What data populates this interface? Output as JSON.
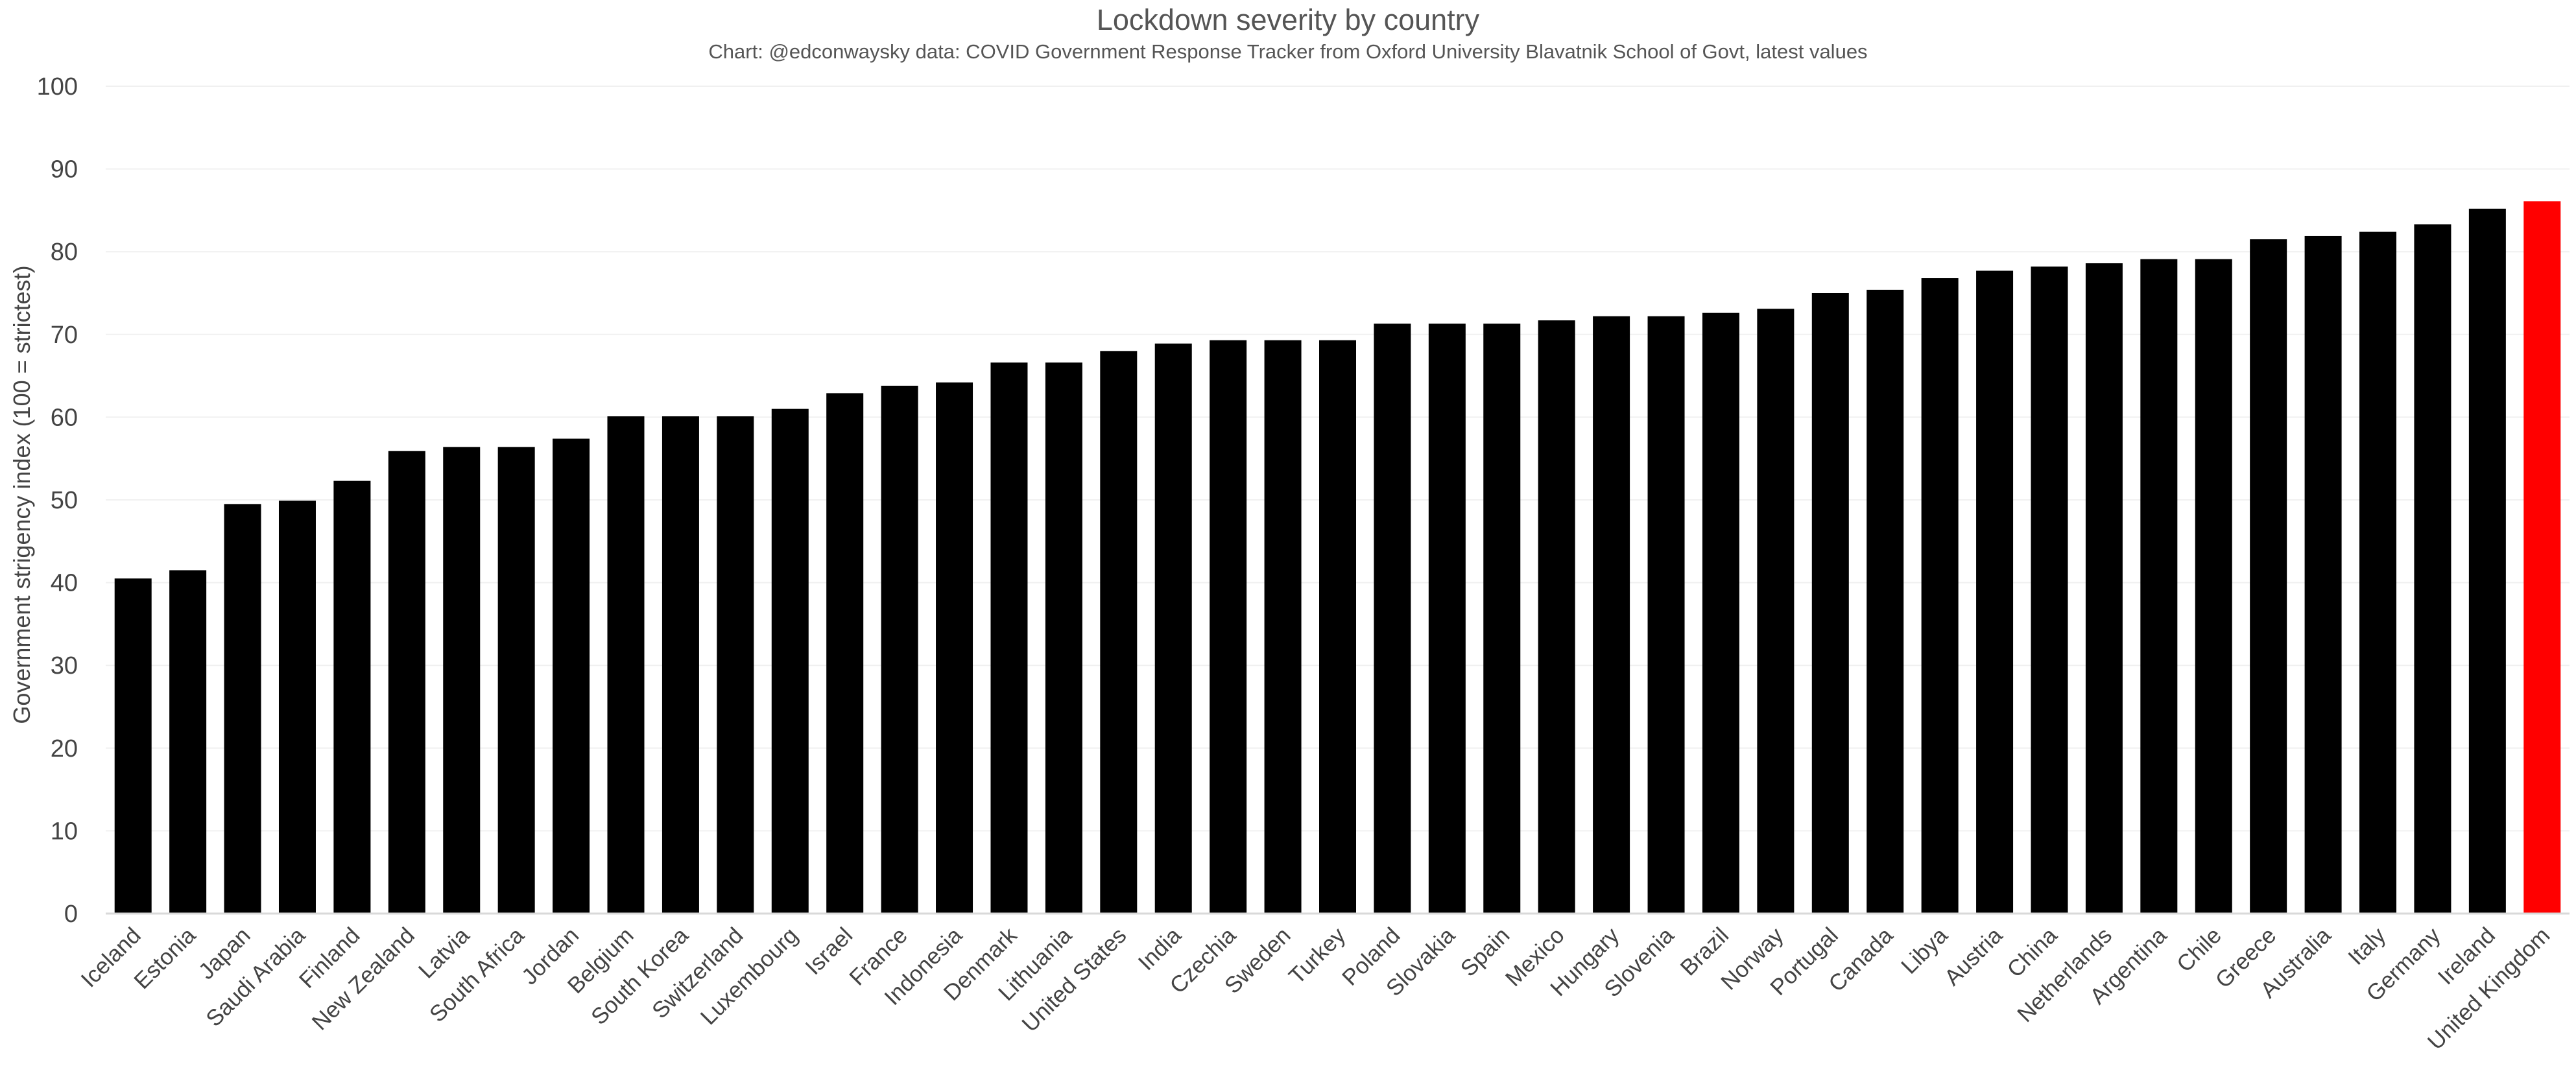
{
  "chart_data": {
    "type": "bar",
    "title": "Lockdown severity by country",
    "subtitle": "Chart: @edconwaysky data: COVID Government Response Tracker from Oxford University Blavatnik School of Govt, latest values",
    "xlabel": "",
    "ylabel": "Government strigency index (100 = strictest)",
    "ylim": [
      0,
      100
    ],
    "y_ticks": [
      "0",
      "10",
      "20",
      "30",
      "40",
      "50",
      "60",
      "70",
      "80",
      "90",
      "100"
    ],
    "grid": true,
    "legend": "none",
    "bar_color": "#000000",
    "highlight_color": "#ff0000",
    "highlight_category": "United Kingdom",
    "categories": [
      "Iceland",
      "Estonia",
      "Japan",
      "Saudi Arabia",
      "Finland",
      "New Zealand",
      "Latvia",
      "South Africa",
      "Jordan",
      "Belgium",
      "South Korea",
      "Switzerland",
      "Luxembourg",
      "Israel",
      "France",
      "Indonesia",
      "Denmark",
      "Lithuania",
      "United States",
      "India",
      "Czechia",
      "Sweden",
      "Turkey",
      "Poland",
      "Slovakia",
      "Spain",
      "Mexico",
      "Hungary",
      "Slovenia",
      "Brazil",
      "Norway",
      "Portugal",
      "Canada",
      "Libya",
      "Austria",
      "China",
      "Netherlands",
      "Argentina",
      "Chile",
      "Greece",
      "Australia",
      "Italy",
      "Germany",
      "Ireland",
      "United Kingdom"
    ],
    "values": [
      40.5,
      41.5,
      49.5,
      49.9,
      52.3,
      55.9,
      56.4,
      56.4,
      57.4,
      60.1,
      60.1,
      60.1,
      61.0,
      62.9,
      63.8,
      64.2,
      66.6,
      66.6,
      68.0,
      68.9,
      69.3,
      69.3,
      69.3,
      71.3,
      71.3,
      71.3,
      71.7,
      72.2,
      72.2,
      72.6,
      73.1,
      75.0,
      75.4,
      76.8,
      77.7,
      78.2,
      78.6,
      79.1,
      79.1,
      81.5,
      81.9,
      82.4,
      83.3,
      85.2,
      86.1
    ]
  }
}
